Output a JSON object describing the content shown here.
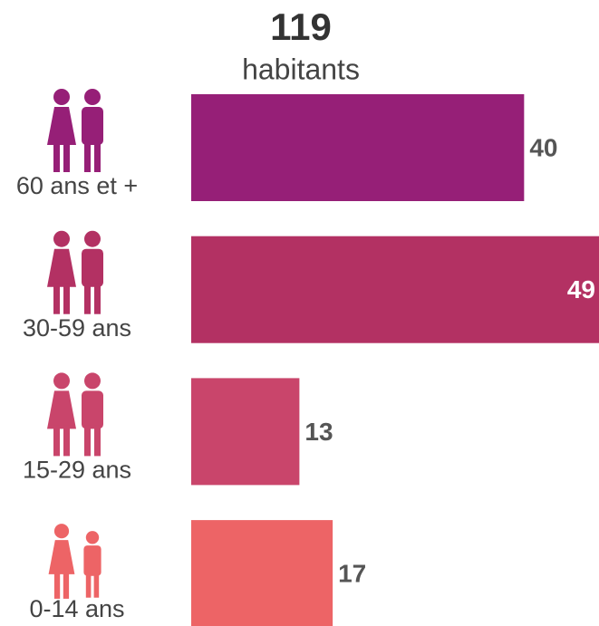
{
  "chart_data": {
    "type": "bar",
    "orientation": "horizontal",
    "title": "119",
    "subtitle": "habitants",
    "categories": [
      "60 ans et +",
      "30-59 ans",
      "15-29 ans",
      "0-14 ans"
    ],
    "values": [
      40,
      49,
      13,
      17
    ],
    "colors": [
      "#961f77",
      "#b33163",
      "#c9456b",
      "#ed6466"
    ]
  }
}
